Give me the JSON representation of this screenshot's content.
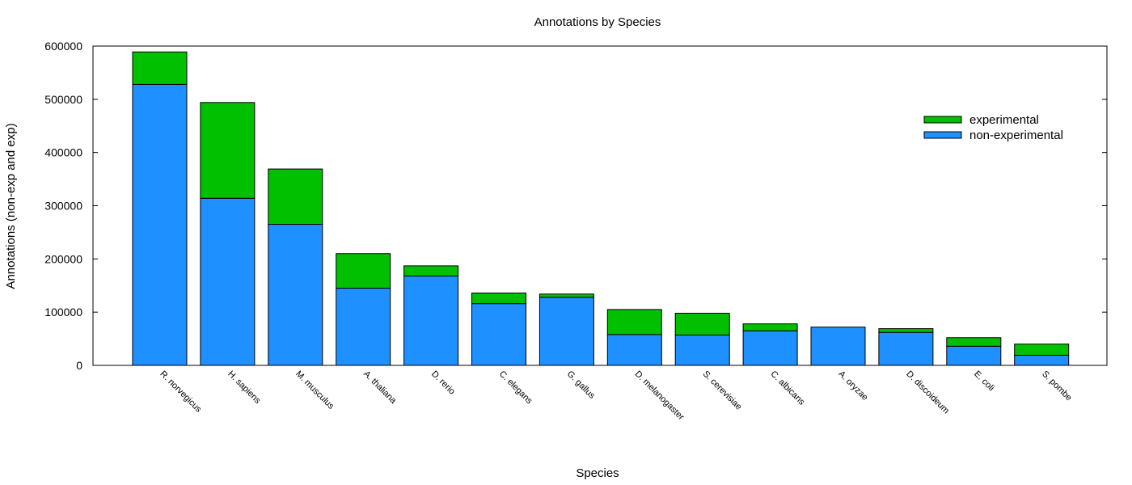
{
  "chart_data": {
    "type": "bar",
    "stacked": true,
    "title": "Annotations by Species",
    "xlabel": "Species",
    "ylabel": "Annotations (non-exp and exp)",
    "ylim": [
      0,
      600000
    ],
    "yticks": [
      "0",
      "100000",
      "200000",
      "300000",
      "400000",
      "500000",
      "600000"
    ],
    "grid": false,
    "legend_position": "top-right",
    "categories": [
      "R. norvegicus",
      "H. sapiens",
      "M. musculus",
      "A. thaliana",
      "D. rerio",
      "C. elegans",
      "G. gallus",
      "D. melanogaster",
      "S. cerevisiae",
      "C. albicans",
      "A. oryzae",
      "D. discoideum",
      "E. coli",
      "S. pombe"
    ],
    "series": [
      {
        "name": "non-experimental",
        "color": "#1e90ff",
        "values": [
          528000,
          314000,
          265000,
          145000,
          168000,
          116000,
          128000,
          58000,
          57000,
          65000,
          72000,
          62000,
          36000,
          19000
        ]
      },
      {
        "name": "experimental",
        "color": "#00c000",
        "values": [
          61000,
          180000,
          104000,
          65000,
          19000,
          20000,
          6000,
          47000,
          41000,
          13000,
          0,
          7000,
          16000,
          21000
        ]
      }
    ],
    "legend": [
      "experimental",
      "non-experimental"
    ]
  }
}
